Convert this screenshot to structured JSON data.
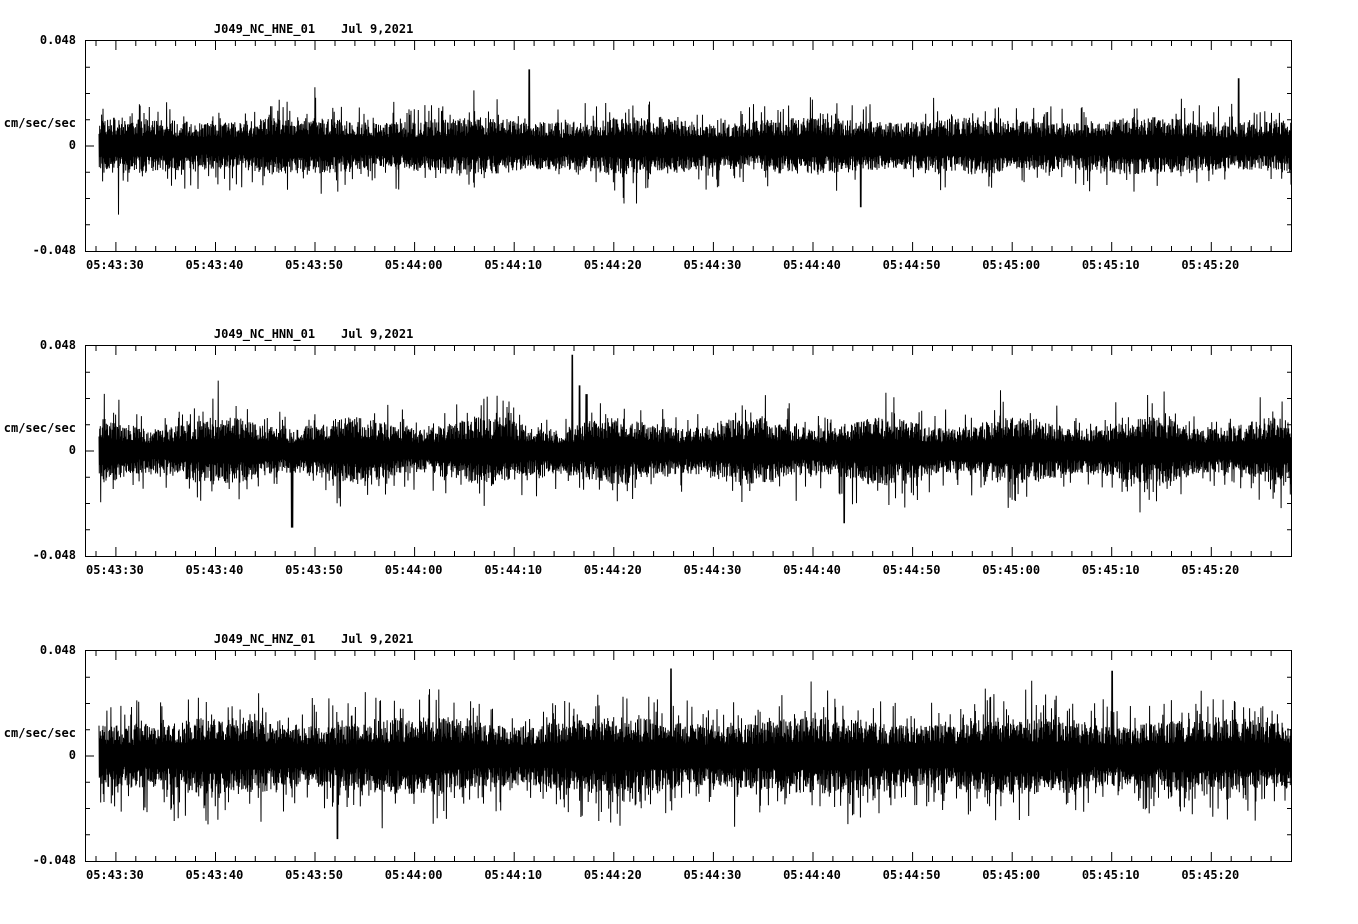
{
  "page": {
    "background_color": "#ffffff",
    "trace_color": "#000000"
  },
  "chart_data": [
    {
      "type": "line",
      "station_channel": "J049_NC_HNE_01",
      "date": "Jul 9,2021",
      "ylabel": "cm/sec/sec",
      "ylim": [
        -0.048,
        0.048
      ],
      "y_tick_labels": [
        "0.048",
        "0",
        "-0.048"
      ],
      "x_tick_labels": [
        "05:43:30",
        "05:43:40",
        "05:43:50",
        "05:44:00",
        "05:44:10",
        "05:44:20",
        "05:44:30",
        "05:44:40",
        "05:44:50",
        "05:45:00",
        "05:45:10",
        "05:45:20"
      ],
      "x_axis": {
        "first_major_tick_s": 3,
        "major_step_s": 10,
        "minor_step_s": 2,
        "duration_s": 121
      },
      "signal_description": "dense high-frequency seismic acceleration noise, roughly uniform amplitude, peaks near ±0.03",
      "waveform_synthesis": {
        "seed": 101,
        "samples": 3600,
        "band": 0.012,
        "spike_prob": 0.12,
        "spike_amp": 0.011,
        "rare_prob": 0.005,
        "rare_amp": 0.018,
        "env_amp": 0.1,
        "env_cycles": 7,
        "env_phase": 0.5,
        "big": [
          {
            "f": 0.361,
            "a": 0.035,
            "s": 1
          },
          {
            "f": 0.956,
            "a": 0.031,
            "s": 1
          },
          {
            "f": 0.639,
            "a": 0.028,
            "s": -1
          }
        ]
      }
    },
    {
      "type": "line",
      "station_channel": "J049_NC_HNN_01",
      "date": "Jul 9,2021",
      "ylabel": "cm/sec/sec",
      "ylim": [
        -0.048,
        0.048
      ],
      "y_tick_labels": [
        "0.048",
        "0",
        "-0.048"
      ],
      "x_tick_labels": [
        "05:43:30",
        "05:43:40",
        "05:43:50",
        "05:44:00",
        "05:44:10",
        "05:44:20",
        "05:44:30",
        "05:44:40",
        "05:44:50",
        "05:45:00",
        "05:45:10",
        "05:45:20"
      ],
      "x_axis": {
        "first_major_tick_s": 3,
        "major_step_s": 10,
        "minor_step_s": 2,
        "duration_s": 121
      },
      "signal_description": "dense seismic noise with variable envelope; prominent upward spike near 05:44:15 reaching ~0.044 and downward spikes near -0.035",
      "waveform_synthesis": {
        "seed": 202,
        "samples": 3600,
        "band": 0.013,
        "spike_prob": 0.12,
        "spike_amp": 0.012,
        "rare_prob": 0.006,
        "rare_amp": 0.018,
        "env_amp": 0.2,
        "env_cycles": 9,
        "env_phase": 2.1,
        "big": [
          {
            "f": 0.397,
            "a": 0.044,
            "s": 1
          },
          {
            "f": 0.403,
            "a": 0.03,
            "s": 1
          },
          {
            "f": 0.409,
            "a": 0.026,
            "s": 1
          },
          {
            "f": 0.162,
            "a": 0.035,
            "s": -1
          },
          {
            "f": 0.625,
            "a": 0.033,
            "s": -1
          }
        ]
      }
    },
    {
      "type": "line",
      "station_channel": "J049_NC_HNZ_01",
      "date": "Jul 9,2021",
      "ylabel": "cm/sec/sec",
      "ylim": [
        -0.048,
        0.048
      ],
      "y_tick_labels": [
        "0.048",
        "0",
        "-0.048"
      ],
      "x_tick_labels": [
        "05:43:30",
        "05:43:40",
        "05:43:50",
        "05:44:00",
        "05:44:10",
        "05:44:20",
        "05:44:30",
        "05:44:40",
        "05:44:50",
        "05:45:00",
        "05:45:10",
        "05:45:20"
      ],
      "x_axis": {
        "first_major_tick_s": 3,
        "major_step_s": 10,
        "minor_step_s": 2,
        "duration_s": 121
      },
      "signal_description": "densest, largest-amplitude seismic noise; frequent spikes approaching ±0.04 across the whole record",
      "waveform_synthesis": {
        "seed": 303,
        "samples": 3600,
        "band": 0.016,
        "spike_prob": 0.18,
        "spike_amp": 0.015,
        "rare_prob": 0.012,
        "rare_amp": 0.02,
        "env_amp": 0.12,
        "env_cycles": 6,
        "env_phase": 4.0,
        "big": [
          {
            "f": 0.48,
            "a": 0.04,
            "s": 1
          },
          {
            "f": 0.2,
            "a": 0.038,
            "s": -1
          },
          {
            "f": 0.85,
            "a": 0.039,
            "s": 1
          }
        ]
      }
    }
  ]
}
